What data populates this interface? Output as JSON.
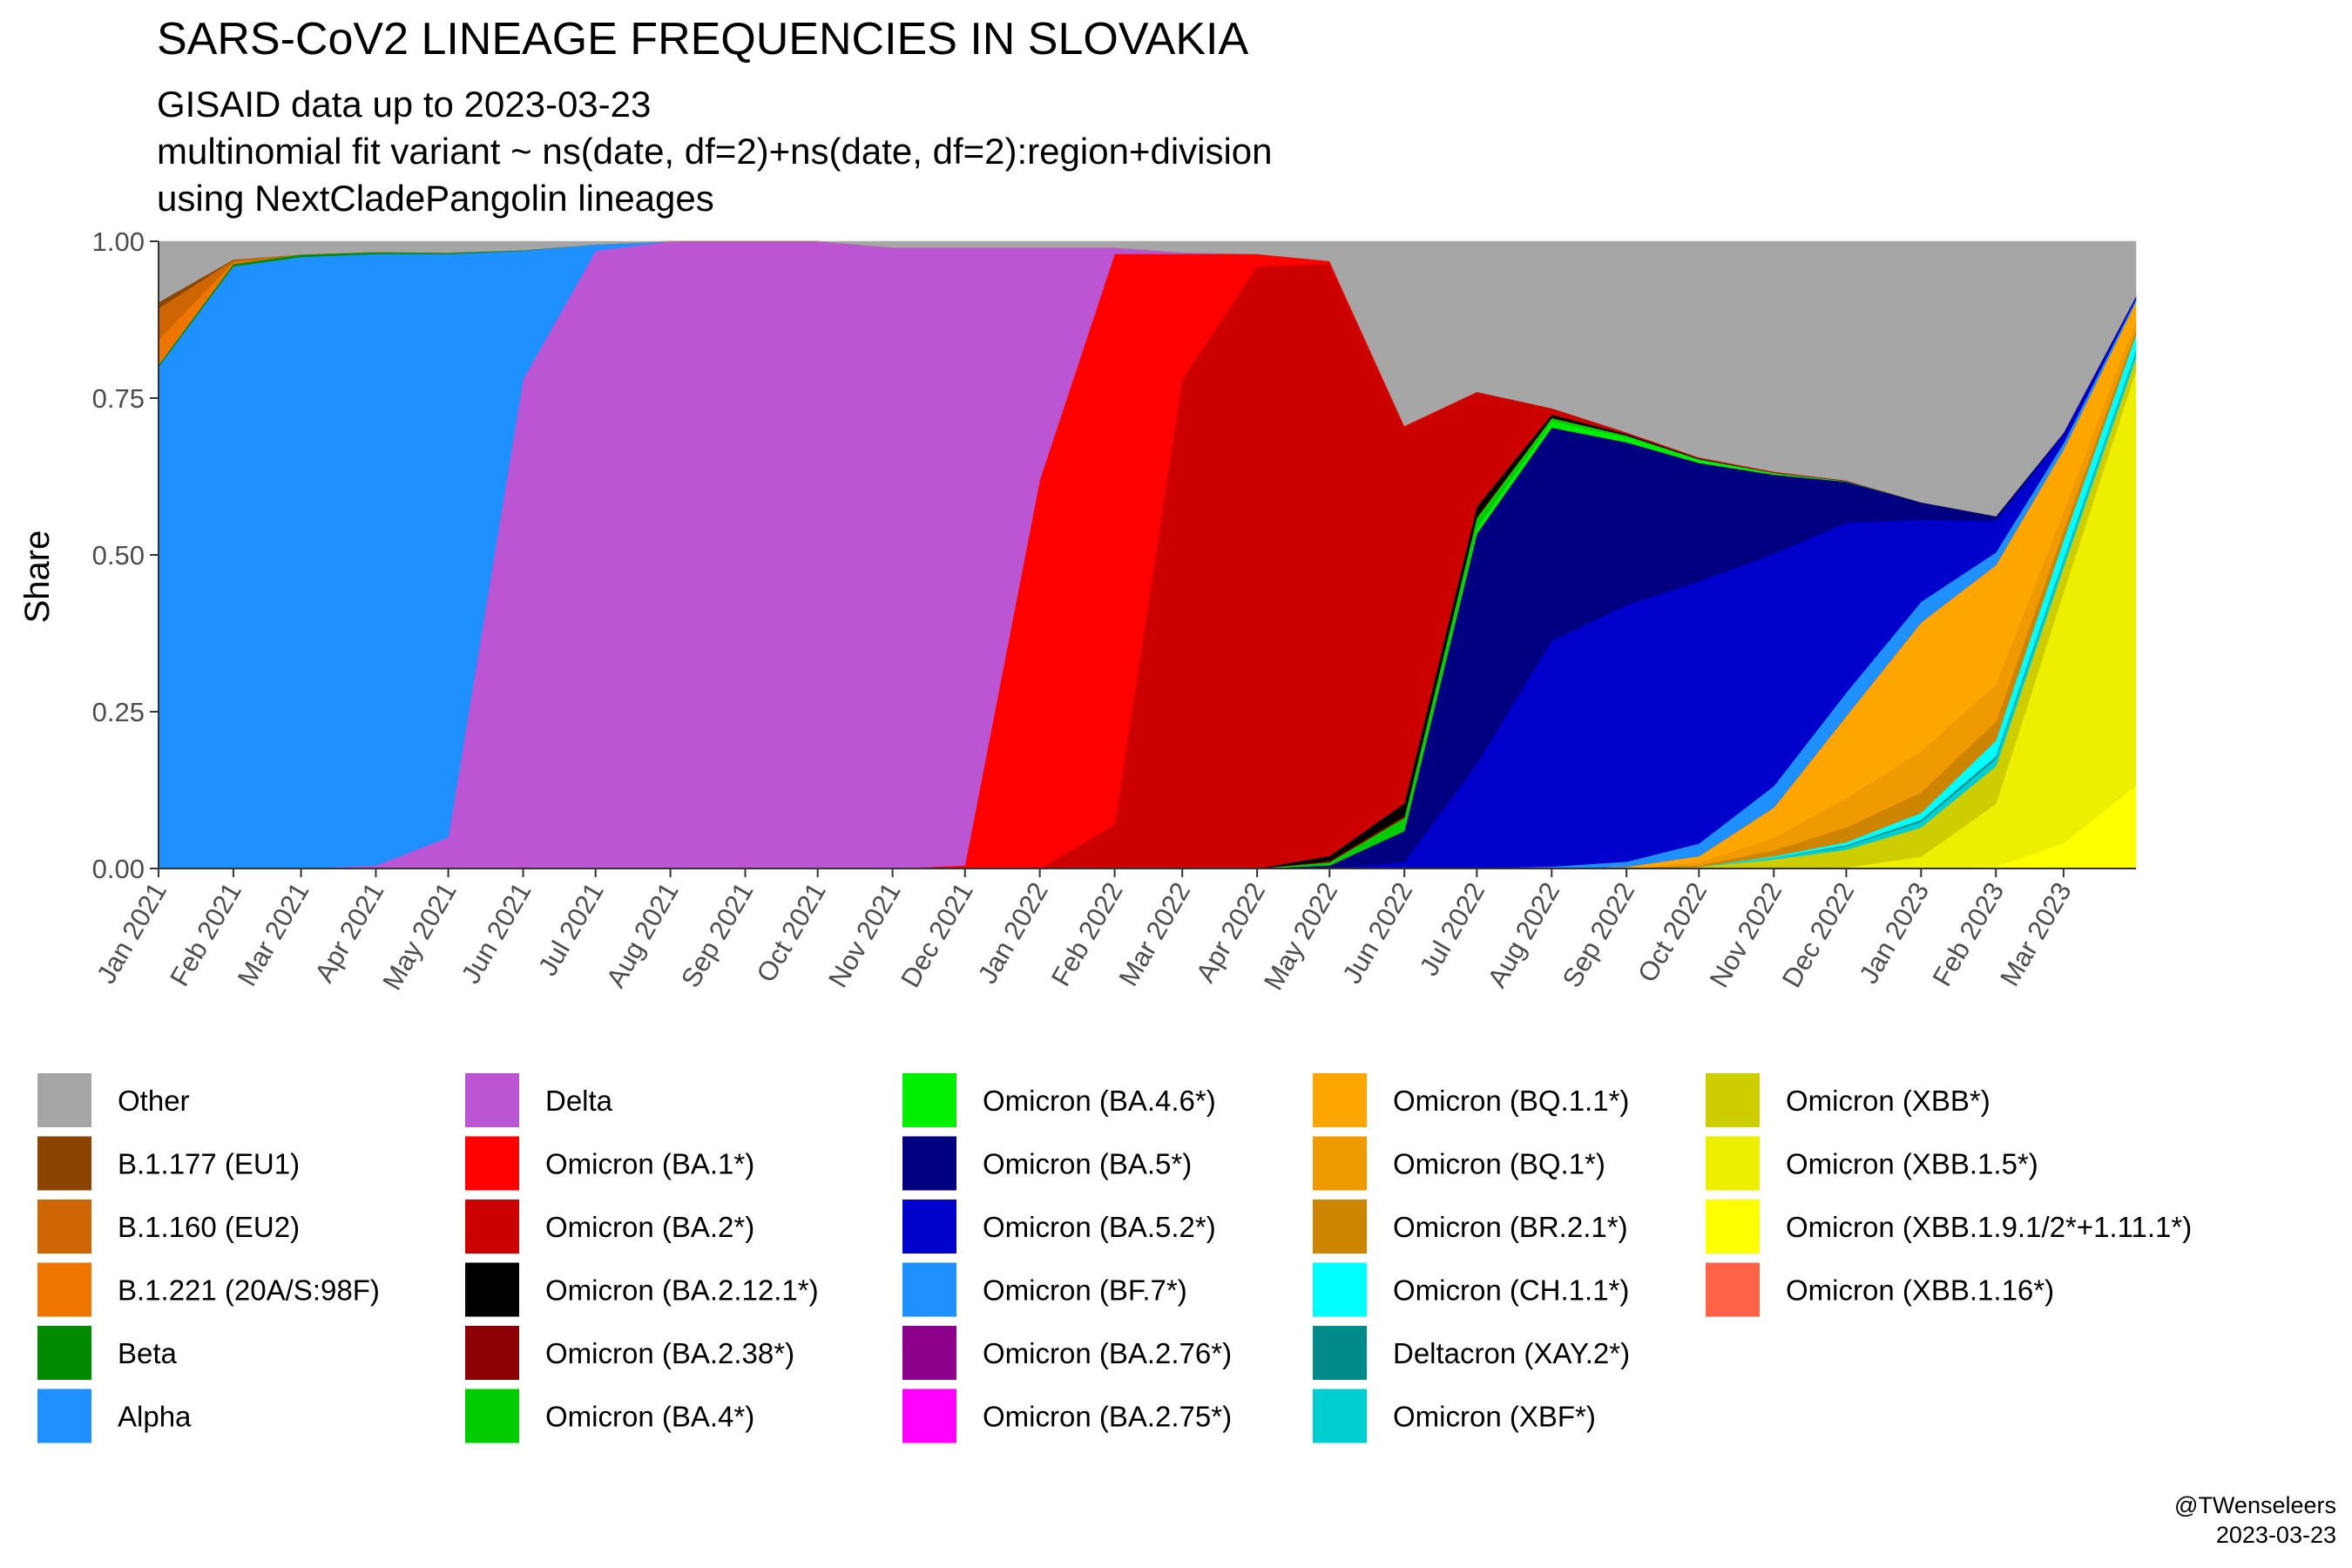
{
  "title": "SARS-CoV2 LINEAGE FREQUENCIES IN SLOVAKIA",
  "subtitle_lines": [
    "GISAID data up to 2023-03-23",
    "multinomial fit variant ~ ns(date, df=2)+ns(date, df=2):region+division",
    "using NextCladePangolin lineages"
  ],
  "caption_lines": [
    "@TWenseleers",
    "2023-03-23"
  ],
  "chart_data": {
    "type": "area",
    "stacked": true,
    "normalized": true,
    "xlabel": "",
    "ylabel": "Share",
    "ylim": [
      0,
      1
    ],
    "yticks": [
      0,
      0.25,
      0.5,
      0.75,
      1
    ],
    "ytick_labels": [
      "0.00",
      "0.25",
      "0.50",
      "0.75",
      "1.00"
    ],
    "x_start": "2021-01-01",
    "x_end": "2023-03-31",
    "x": [
      "2021-01-01",
      "2021-02-01",
      "2021-03-01",
      "2021-04-01",
      "2021-05-01",
      "2021-06-01",
      "2021-07-01",
      "2021-08-01",
      "2021-09-01",
      "2021-10-01",
      "2021-11-01",
      "2021-12-01",
      "2022-01-01",
      "2022-02-01",
      "2022-03-01",
      "2022-04-01",
      "2022-05-01",
      "2022-06-01",
      "2022-07-01",
      "2022-08-01",
      "2022-09-01",
      "2022-10-01",
      "2022-11-01",
      "2022-12-01",
      "2023-01-01",
      "2023-02-01",
      "2023-03-01",
      "2023-03-31"
    ],
    "xtick_labels": [
      "Jan 2021",
      "Feb 2021",
      "Mar 2021",
      "Apr 2021",
      "May 2021",
      "Jun 2021",
      "Jul 2021",
      "Aug 2021",
      "Sep 2021",
      "Oct 2021",
      "Nov 2021",
      "Dec 2021",
      "Jan 2022",
      "Feb 2022",
      "Mar 2022",
      "Apr 2022",
      "May 2022",
      "Jun 2022",
      "Jul 2022",
      "Aug 2022",
      "Sep 2022",
      "Oct 2022",
      "Nov 2022",
      "Dec 2022",
      "Jan 2023",
      "Feb 2023",
      "Mar 2023"
    ],
    "grid": false,
    "legend_position": "bottom",
    "series": [
      {
        "name": "Omicron (XBB.1.16*)",
        "color": "#FF6347",
        "values": [
          0,
          0,
          0,
          0,
          0,
          0,
          0,
          0,
          0,
          0,
          0,
          0,
          0,
          0,
          0,
          0,
          0,
          0,
          0,
          0,
          0,
          0,
          0,
          0,
          0,
          0,
          0,
          0.002
        ]
      },
      {
        "name": "Omicron (XBB.1.9.1/2*+1.11.1*)",
        "color": "#FFFF00",
        "values": [
          0,
          0,
          0,
          0,
          0,
          0,
          0,
          0,
          0,
          0,
          0,
          0,
          0,
          0,
          0,
          0,
          0,
          0,
          0,
          0,
          0,
          0,
          0,
          0,
          0,
          0.003,
          0.04,
          0.13
        ]
      },
      {
        "name": "Omicron (XBB.1.5*)",
        "color": "#EEEE00",
        "values": [
          0,
          0,
          0,
          0,
          0,
          0,
          0,
          0,
          0,
          0,
          0,
          0,
          0,
          0,
          0,
          0,
          0,
          0,
          0,
          0,
          0,
          0,
          0,
          0.002,
          0.02,
          0.1,
          0.4,
          0.66
        ]
      },
      {
        "name": "Omicron (XBB*)",
        "color": "#CDCD00",
        "values": [
          0,
          0,
          0,
          0,
          0,
          0,
          0,
          0,
          0,
          0,
          0,
          0,
          0,
          0,
          0,
          0,
          0,
          0,
          0,
          0,
          0,
          0.003,
          0.015,
          0.03,
          0.05,
          0.06,
          0.04,
          0.02
        ]
      },
      {
        "name": "Omicron (XBF*)",
        "color": "#00CED1",
        "values": [
          0,
          0,
          0,
          0,
          0,
          0,
          0,
          0,
          0,
          0,
          0,
          0,
          0,
          0,
          0,
          0,
          0,
          0,
          0,
          0,
          0,
          0,
          0.003,
          0.006,
          0.01,
          0.012,
          0.01,
          0.01
        ]
      },
      {
        "name": "Deltacron (XAY.2*)",
        "color": "#008B8B",
        "values": [
          0,
          0,
          0,
          0,
          0,
          0,
          0,
          0,
          0,
          0,
          0,
          0,
          0,
          0,
          0,
          0,
          0,
          0,
          0,
          0,
          0,
          0,
          0,
          0.002,
          0.003,
          0.004,
          0.003,
          0.002
        ]
      },
      {
        "name": "Omicron (CH.1.1*)",
        "color": "#00FFFF",
        "values": [
          0,
          0,
          0,
          0,
          0,
          0,
          0,
          0,
          0,
          0,
          0,
          0,
          0,
          0,
          0,
          0,
          0,
          0,
          0,
          0,
          0,
          0,
          0.002,
          0.005,
          0.012,
          0.025,
          0.03,
          0.025
        ]
      },
      {
        "name": "Omicron (BR.2.1*)",
        "color": "#CD8500",
        "values": [
          0,
          0,
          0,
          0,
          0,
          0,
          0,
          0,
          0,
          0,
          0,
          0,
          0,
          0,
          0,
          0,
          0,
          0,
          0,
          0,
          0,
          0.002,
          0.01,
          0.025,
          0.035,
          0.03,
          0.015,
          0.008
        ]
      },
      {
        "name": "Omicron (BQ.1*)",
        "color": "#EE9A00",
        "values": [
          0,
          0,
          0,
          0,
          0,
          0,
          0,
          0,
          0,
          0,
          0,
          0,
          0,
          0,
          0,
          0,
          0,
          0,
          0,
          0,
          0,
          0.005,
          0.02,
          0.05,
          0.07,
          0.06,
          0.03,
          0.015
        ]
      },
      {
        "name": "Omicron (BQ.1.1*)",
        "color": "#FFA500",
        "values": [
          0,
          0,
          0,
          0,
          0,
          0,
          0,
          0,
          0,
          0,
          0,
          0,
          0,
          0,
          0,
          0,
          0,
          0,
          0,
          0,
          0.003,
          0.01,
          0.05,
          0.14,
          0.22,
          0.19,
          0.1,
          0.03
        ]
      },
      {
        "name": "Omicron (BA.2.75*)",
        "color": "#FF00FF",
        "values": [
          0,
          0,
          0,
          0,
          0,
          0,
          0,
          0,
          0,
          0,
          0,
          0,
          0,
          0,
          0,
          0,
          0,
          0,
          0,
          0,
          0,
          0,
          0,
          0,
          0,
          0,
          0,
          0
        ]
      },
      {
        "name": "Omicron (BA.2.76*)",
        "color": "#8B008B",
        "values": [
          0,
          0,
          0,
          0,
          0,
          0,
          0,
          0,
          0,
          0,
          0,
          0,
          0,
          0,
          0,
          0,
          0,
          0,
          0,
          0,
          0,
          0,
          0,
          0,
          0,
          0,
          0,
          0
        ]
      },
      {
        "name": "Omicron (BF.7*)",
        "color": "#1E90FF",
        "values": [
          0,
          0,
          0,
          0,
          0,
          0,
          0,
          0,
          0,
          0,
          0,
          0,
          0,
          0,
          0,
          0,
          0,
          0,
          0.001,
          0.003,
          0.008,
          0.02,
          0.035,
          0.04,
          0.035,
          0.02,
          0.01,
          0.004
        ]
      },
      {
        "name": "Omicron (BA.5.2*)",
        "color": "#0000CD",
        "values": [
          0,
          0,
          0,
          0,
          0,
          0,
          0,
          0,
          0,
          0,
          0,
          0,
          0,
          0,
          0,
          0,
          0,
          0.01,
          0.2,
          0.36,
          0.41,
          0.42,
          0.38,
          0.29,
          0.14,
          0.05,
          0.015,
          0.004
        ]
      },
      {
        "name": "Omicron (BA.5*)",
        "color": "#000080",
        "values": [
          0,
          0,
          0,
          0,
          0,
          0,
          0,
          0,
          0,
          0,
          0,
          0,
          0,
          0,
          0,
          0,
          0.005,
          0.05,
          0.44,
          0.34,
          0.26,
          0.19,
          0.13,
          0.07,
          0.03,
          0.008,
          0.002,
          0.001
        ]
      },
      {
        "name": "Omicron (BA.4.6*)",
        "color": "#00EE00",
        "values": [
          0,
          0,
          0,
          0,
          0,
          0,
          0,
          0,
          0,
          0,
          0,
          0,
          0,
          0,
          0,
          0,
          0,
          0.001,
          0.01,
          0.01,
          0.008,
          0.005,
          0.003,
          0.001,
          0,
          0,
          0,
          0
        ]
      },
      {
        "name": "Omicron (BA.4*)",
        "color": "#00CD00",
        "values": [
          0,
          0,
          0,
          0,
          0,
          0,
          0,
          0,
          0,
          0,
          0,
          0,
          0,
          0,
          0,
          0,
          0.005,
          0.02,
          0.02,
          0.005,
          0.003,
          0.001,
          0,
          0,
          0,
          0,
          0,
          0
        ]
      },
      {
        "name": "Omicron (BA.2.38*)",
        "color": "#8B0000",
        "values": [
          0,
          0,
          0,
          0,
          0,
          0,
          0,
          0,
          0,
          0,
          0,
          0,
          0,
          0,
          0,
          0,
          0.002,
          0.003,
          0.002,
          0.001,
          0,
          0,
          0,
          0,
          0,
          0,
          0,
          0
        ]
      },
      {
        "name": "Omicron (BA.2.12.1*)",
        "color": "#000000",
        "values": [
          0,
          0,
          0,
          0,
          0,
          0,
          0,
          0,
          0,
          0,
          0,
          0,
          0,
          0,
          0,
          0,
          0.008,
          0.02,
          0.02,
          0.005,
          0.002,
          0.001,
          0,
          0,
          0,
          0,
          0,
          0
        ]
      },
      {
        "name": "Omicron (BA.2*)",
        "color": "#CD0000",
        "values": [
          0,
          0,
          0,
          0,
          0,
          0,
          0,
          0,
          0,
          0,
          0,
          0,
          0,
          0.07,
          0.78,
          0.96,
          0.94,
          0.6,
          0.22,
          0.01,
          0.003,
          0.002,
          0.002,
          0.001,
          0,
          0,
          0,
          0
        ]
      },
      {
        "name": "Omicron (BA.1*)",
        "color": "#FF0000",
        "values": [
          0,
          0,
          0,
          0,
          0,
          0,
          0,
          0,
          0,
          0,
          0,
          0.005,
          0.62,
          0.91,
          0.2,
          0.02,
          0.005,
          0.002,
          0,
          0,
          0,
          0,
          0,
          0,
          0,
          0,
          0,
          0
        ]
      },
      {
        "name": "Delta",
        "color": "#BA55D3",
        "values": [
          0,
          0,
          0,
          0.005,
          0.05,
          0.78,
          0.985,
          1,
          1,
          1,
          0.99,
          0.985,
          0.37,
          0.01,
          0.002,
          0,
          0,
          0,
          0,
          0,
          0,
          0,
          0,
          0,
          0,
          0,
          0,
          0
        ]
      },
      {
        "name": "Alpha",
        "color": "#1E90FF",
        "values": [
          0.8,
          0.96,
          0.975,
          0.975,
          0.93,
          0.205,
          0.01,
          0,
          0,
          0,
          0,
          0,
          0,
          0,
          0,
          0,
          0,
          0,
          0,
          0,
          0,
          0,
          0,
          0,
          0,
          0,
          0,
          0
        ]
      },
      {
        "name": "Beta",
        "color": "#008B00",
        "values": [
          0.003,
          0.004,
          0.004,
          0.003,
          0.002,
          0.001,
          0,
          0,
          0,
          0,
          0,
          0,
          0,
          0,
          0,
          0,
          0,
          0,
          0,
          0,
          0,
          0,
          0,
          0,
          0,
          0,
          0,
          0
        ]
      },
      {
        "name": "B.1.221 (20A/S:98F)",
        "color": "#EE7600",
        "values": [
          0.04,
          0.003,
          0,
          0,
          0,
          0,
          0,
          0,
          0,
          0,
          0,
          0,
          0,
          0,
          0,
          0,
          0,
          0,
          0,
          0,
          0,
          0,
          0,
          0,
          0,
          0,
          0,
          0
        ]
      },
      {
        "name": "B.1.160 (EU2)",
        "color": "#CD6600",
        "values": [
          0.05,
          0.003,
          0,
          0,
          0,
          0,
          0,
          0,
          0,
          0,
          0,
          0,
          0,
          0,
          0,
          0,
          0,
          0,
          0,
          0,
          0,
          0,
          0,
          0,
          0,
          0,
          0,
          0
        ]
      },
      {
        "name": "B.1.177 (EU1)",
        "color": "#8B4500",
        "values": [
          0.01,
          0.001,
          0,
          0,
          0,
          0,
          0,
          0,
          0,
          0,
          0,
          0,
          0,
          0,
          0,
          0,
          0,
          0,
          0,
          0,
          0,
          0,
          0,
          0,
          0,
          0,
          0,
          0
        ]
      },
      {
        "name": "Other",
        "color": "#A6A6A6",
        "values": [
          0.097,
          0.029,
          0.021,
          0.017,
          0.018,
          0.014,
          0.005,
          0,
          0,
          0,
          0.01,
          0.01,
          0.01,
          0.01,
          0.018,
          0.02,
          0.031,
          0.294,
          0.288,
          0.266,
          0.305,
          0.346,
          0.377,
          0.408,
          0.445,
          0.438,
          0.305,
          0.087
        ]
      }
    ],
    "legend_columns": [
      [
        {
          "label": "Other",
          "color": "#A6A6A6"
        },
        {
          "label": "B.1.177 (EU1)",
          "color": "#8B4500"
        },
        {
          "label": "B.1.160 (EU2)",
          "color": "#CD6600"
        },
        {
          "label": "B.1.221 (20A/S:98F)",
          "color": "#EE7600"
        },
        {
          "label": "Beta",
          "color": "#008B00"
        },
        {
          "label": "Alpha",
          "color": "#1E90FF"
        }
      ],
      [
        {
          "label": "Delta",
          "color": "#BA55D3"
        },
        {
          "label": "Omicron (BA.1*)",
          "color": "#FF0000"
        },
        {
          "label": "Omicron (BA.2*)",
          "color": "#CD0000"
        },
        {
          "label": "Omicron (BA.2.12.1*)",
          "color": "#000000"
        },
        {
          "label": "Omicron (BA.2.38*)",
          "color": "#8B0000"
        },
        {
          "label": "Omicron (BA.4*)",
          "color": "#00CD00"
        }
      ],
      [
        {
          "label": "Omicron (BA.4.6*)",
          "color": "#00EE00"
        },
        {
          "label": "Omicron (BA.5*)",
          "color": "#000080"
        },
        {
          "label": "Omicron (BA.5.2*)",
          "color": "#0000CD"
        },
        {
          "label": "Omicron (BF.7*)",
          "color": "#1E90FF"
        },
        {
          "label": "Omicron (BA.2.76*)",
          "color": "#8B008B"
        },
        {
          "label": "Omicron (BA.2.75*)",
          "color": "#FF00FF"
        }
      ],
      [
        {
          "label": "Omicron (BQ.1.1*)",
          "color": "#FFA500"
        },
        {
          "label": "Omicron (BQ.1*)",
          "color": "#EE9A00"
        },
        {
          "label": "Omicron (BR.2.1*)",
          "color": "#CD8500"
        },
        {
          "label": "Omicron (CH.1.1*)",
          "color": "#00FFFF"
        },
        {
          "label": "Deltacron (XAY.2*)",
          "color": "#008B8B"
        },
        {
          "label": "Omicron (XBF*)",
          "color": "#00CED1"
        }
      ],
      [
        {
          "label": "Omicron (XBB*)",
          "color": "#CDCD00"
        },
        {
          "label": "Omicron (XBB.1.5*)",
          "color": "#EEEE00"
        },
        {
          "label": "Omicron (XBB.1.9.1/2*+1.11.1*)",
          "color": "#FFFF00"
        },
        {
          "label": "Omicron (XBB.1.16*)",
          "color": "#FF6347"
        }
      ]
    ]
  }
}
